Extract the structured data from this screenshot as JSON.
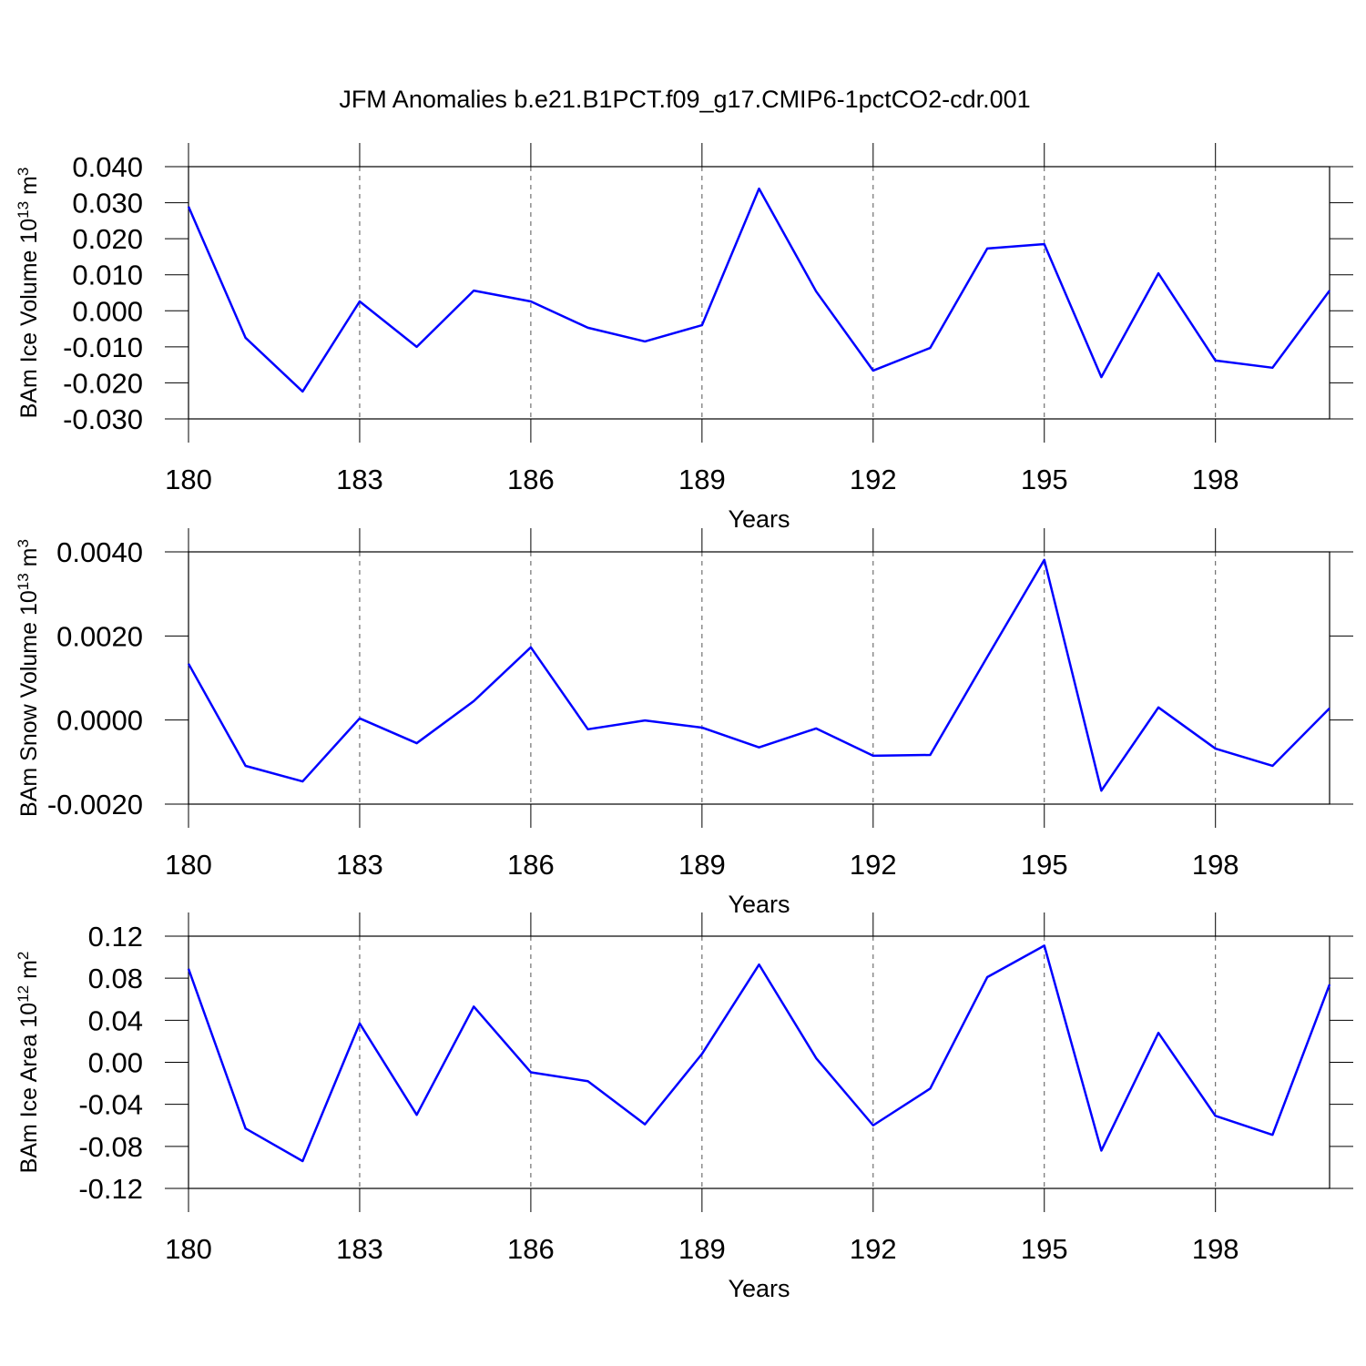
{
  "title": "JFM Anomalies b.e21.B1PCT.f09_g17.CMIP6-1pctCO2-cdr.001",
  "chart_data": [
    {
      "type": "line",
      "ylabel": [
        "BAm Ice Volume 10",
        "13",
        " m",
        "3"
      ],
      "xlabel": "Years",
      "x": [
        180,
        181,
        182,
        183,
        184,
        185,
        186,
        187,
        188,
        189,
        190,
        191,
        192,
        193,
        194,
        195,
        196,
        197,
        198,
        199,
        200
      ],
      "series": [
        {
          "color": "#0000ff",
          "values": [
            0.0289,
            -0.0075,
            -0.0224,
            0.0026,
            -0.01,
            0.0056,
            0.0026,
            -0.0047,
            -0.0085,
            -0.004,
            0.0339,
            0.0054,
            -0.0166,
            -0.0103,
            0.0173,
            0.0185,
            -0.0184,
            0.0104,
            -0.0138,
            -0.0158,
            0.0056
          ]
        }
      ],
      "xlim": [
        180,
        200
      ],
      "xticks": [
        180,
        183,
        186,
        189,
        192,
        195,
        198
      ],
      "ylim": [
        -0.03,
        0.04
      ],
      "yticks": [
        {
          "value": 0.04,
          "label": "0.040"
        },
        {
          "value": 0.03,
          "label": "0.030"
        },
        {
          "value": 0.02,
          "label": "0.020"
        },
        {
          "value": 0.01,
          "label": "0.010"
        },
        {
          "value": 0,
          "label": "0.000"
        },
        {
          "value": -0.01,
          "label": "-0.010"
        },
        {
          "value": -0.02,
          "label": "-0.020"
        },
        {
          "value": -0.03,
          "label": "-0.030"
        }
      ],
      "xgrid": true
    },
    {
      "type": "line",
      "ylabel": [
        "BAm Snow Volume 10",
        "13",
        " m",
        "3"
      ],
      "xlabel": "Years",
      "x": [
        180,
        181,
        182,
        183,
        184,
        185,
        186,
        187,
        188,
        189,
        190,
        191,
        192,
        193,
        194,
        195,
        196,
        197,
        198,
        199,
        200
      ],
      "series": [
        {
          "color": "#0000ff",
          "values": [
            0.00134,
            -0.00109,
            -0.00146,
            4e-05,
            -0.00055,
            0.00045,
            0.00173,
            -0.00022,
            -1e-05,
            -0.00018,
            -0.00065,
            -0.0002,
            -0.00085,
            -0.00083,
            0.0015,
            0.00381,
            -0.00168,
            0.0003,
            -0.00068,
            -0.00109,
            0.00028
          ]
        }
      ],
      "xlim": [
        180,
        200
      ],
      "xticks": [
        180,
        183,
        186,
        189,
        192,
        195,
        198
      ],
      "ylim": [
        -0.002,
        0.004
      ],
      "yticks": [
        {
          "value": 0.004,
          "label": "0.0040"
        },
        {
          "value": 0.002,
          "label": "0.0020"
        },
        {
          "value": 0,
          "label": "0.0000"
        },
        {
          "value": -0.002,
          "label": "-0.0020"
        }
      ],
      "xgrid": true
    },
    {
      "type": "line",
      "ylabel": [
        "BAm Ice Area 10",
        "12",
        " m",
        "2"
      ],
      "xlabel": "Years",
      "x": [
        180,
        181,
        182,
        183,
        184,
        185,
        186,
        187,
        188,
        189,
        190,
        191,
        192,
        193,
        194,
        195,
        196,
        197,
        198,
        199,
        200
      ],
      "series": [
        {
          "color": "#0000ff",
          "values": [
            0.089,
            -0.063,
            -0.094,
            0.037,
            -0.05,
            0.053,
            -0.0095,
            -0.018,
            -0.059,
            0.008,
            0.093,
            0.004,
            -0.06,
            -0.025,
            0.081,
            0.111,
            -0.084,
            0.028,
            -0.051,
            -0.069,
            0.074
          ]
        }
      ],
      "xlim": [
        180,
        200
      ],
      "xticks": [
        180,
        183,
        186,
        189,
        192,
        195,
        198
      ],
      "ylim": [
        -0.12,
        0.12
      ],
      "yticks": [
        0.12,
        0.08,
        0.04,
        {
          "value": 0,
          "label": "0.00"
        },
        -0.04,
        -0.08,
        -0.12
      ],
      "xgrid": true
    }
  ]
}
